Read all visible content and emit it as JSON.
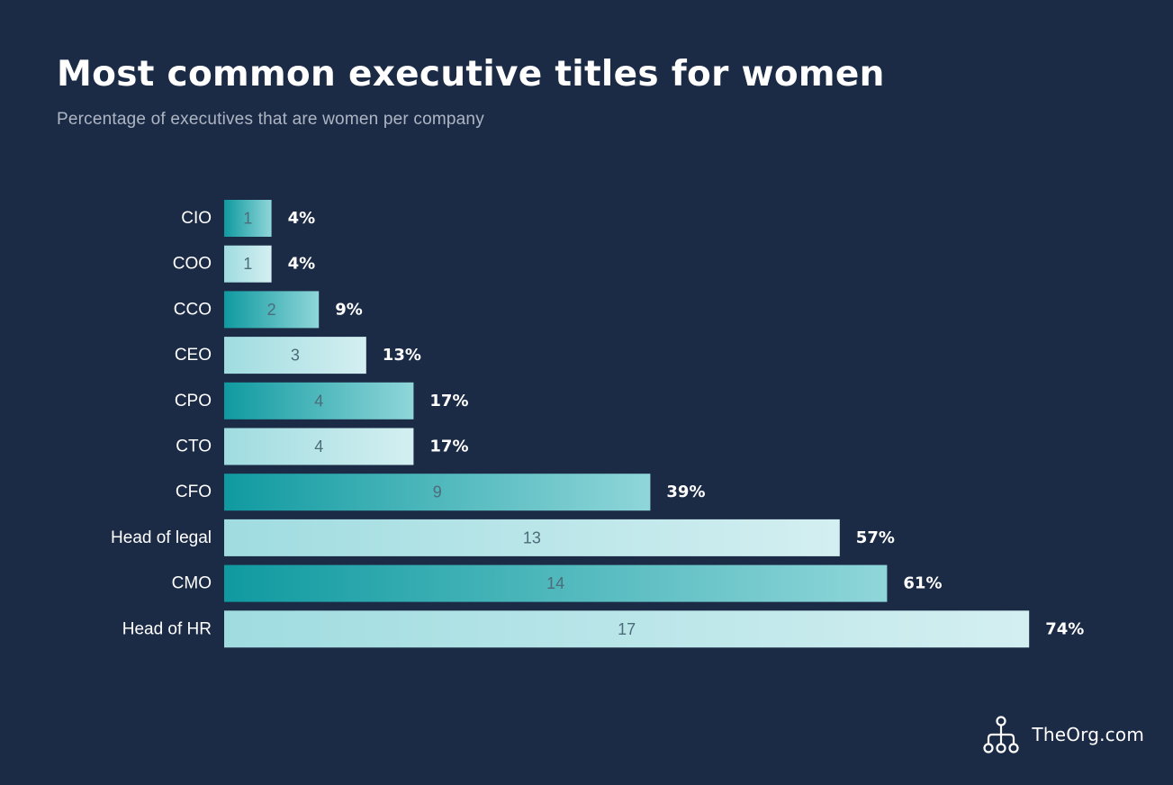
{
  "header": {
    "title": "Most common executive titles for women",
    "subtitle": "Percentage of executives that are women per company"
  },
  "brand": {
    "name": "TheOrg.com",
    "icon": "org-chart-icon"
  },
  "colors": {
    "background": "#1b2a45",
    "bar_dark_start": "#0f9aa0",
    "bar_dark_end": "#8fd6d9",
    "bar_light_start": "#9fdce0",
    "bar_light_end": "#d4eff1"
  },
  "chart_data": {
    "type": "bar",
    "orientation": "horizontal",
    "categories": [
      "CIO",
      "COO",
      "CCO",
      "CEO",
      "CPO",
      "CTO",
      "CFO",
      "Head of legal",
      "CMO",
      "Head of HR"
    ],
    "counts": [
      1,
      1,
      2,
      3,
      4,
      4,
      9,
      13,
      14,
      17
    ],
    "percentages": [
      "4%",
      "4%",
      "9%",
      "13%",
      "17%",
      "17%",
      "39%",
      "57%",
      "61%",
      "74%"
    ],
    "values": [
      4,
      4,
      9,
      13,
      17,
      17,
      39,
      57,
      61,
      74
    ],
    "title": "Most common executive titles for women",
    "subtitle": "Percentage of executives that are women per company",
    "xlabel": "",
    "ylabel": "",
    "grid": false,
    "legend": "none"
  }
}
